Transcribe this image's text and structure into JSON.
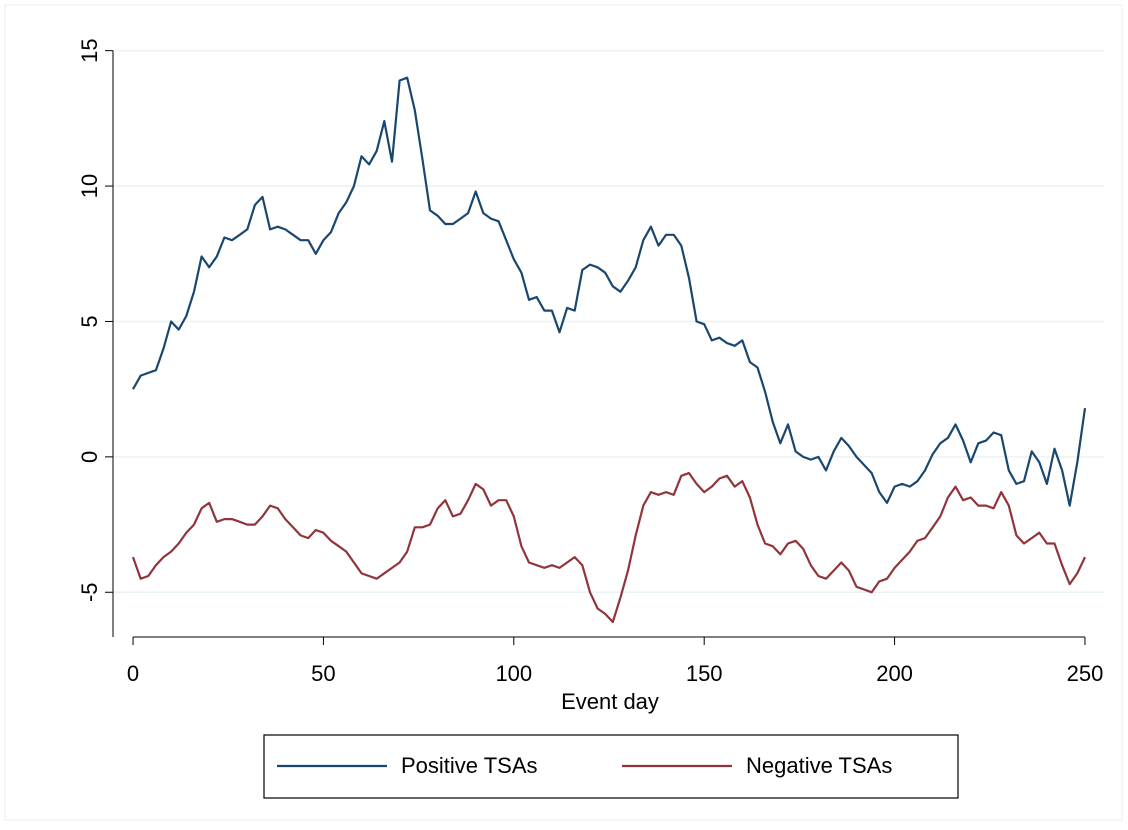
{
  "chart_data": {
    "type": "line",
    "xlabel": "Event day",
    "x": [
      0,
      2,
      4,
      6,
      8,
      10,
      12,
      14,
      16,
      18,
      20,
      22,
      24,
      26,
      28,
      30,
      32,
      34,
      36,
      38,
      40,
      42,
      44,
      46,
      48,
      50,
      52,
      54,
      56,
      58,
      60,
      62,
      64,
      66,
      68,
      70,
      72,
      74,
      76,
      78,
      80,
      82,
      84,
      86,
      88,
      90,
      92,
      94,
      96,
      98,
      100,
      102,
      104,
      106,
      108,
      110,
      112,
      114,
      116,
      118,
      120,
      122,
      124,
      126,
      128,
      130,
      132,
      134,
      136,
      138,
      140,
      142,
      144,
      146,
      148,
      150,
      152,
      154,
      156,
      158,
      160,
      162,
      164,
      166,
      168,
      170,
      172,
      174,
      176,
      178,
      180,
      182,
      184,
      186,
      188,
      190,
      192,
      194,
      196,
      198,
      200,
      202,
      204,
      206,
      208,
      210,
      212,
      214,
      216,
      218,
      220,
      222,
      224,
      226,
      228,
      230,
      232,
      234,
      236,
      238,
      240,
      242,
      244,
      246,
      248,
      250
    ],
    "series": [
      {
        "name": "Positive TSAs",
        "color": "#1a476f",
        "values": [
          2.5,
          3.0,
          3.1,
          3.2,
          4.0,
          5.0,
          4.7,
          5.2,
          6.1,
          7.4,
          7.0,
          7.4,
          8.1,
          8.0,
          8.2,
          8.4,
          9.3,
          9.6,
          8.4,
          8.5,
          8.4,
          8.2,
          8.0,
          8.0,
          7.5,
          8.0,
          8.3,
          9.0,
          9.4,
          10.0,
          11.1,
          10.8,
          11.3,
          12.4,
          10.9,
          13.9,
          14.0,
          12.8,
          11.0,
          9.1,
          8.9,
          8.6,
          8.6,
          8.8,
          9.0,
          9.8,
          9.0,
          8.8,
          8.7,
          8.0,
          7.3,
          6.8,
          5.8,
          5.9,
          5.4,
          5.4,
          4.6,
          5.5,
          5.4,
          6.9,
          7.1,
          7.0,
          6.8,
          6.3,
          6.1,
          6.5,
          7.0,
          8.0,
          8.5,
          7.8,
          8.2,
          8.2,
          7.8,
          6.6,
          5.0,
          4.9,
          4.3,
          4.4,
          4.2,
          4.1,
          4.3,
          3.5,
          3.3,
          2.4,
          1.3,
          0.5,
          1.2,
          0.2,
          0.0,
          -0.1,
          0.0,
          -0.5,
          0.2,
          0.7,
          0.4,
          0.0,
          -0.3,
          -0.6,
          -1.3,
          -1.7,
          -1.1,
          -1.0,
          -1.1,
          -0.9,
          -0.5,
          0.1,
          0.5,
          0.7,
          1.2,
          0.6,
          -0.2,
          0.5,
          0.6,
          0.9,
          0.8,
          -0.5,
          -1.0,
          -0.9,
          0.2,
          -0.2,
          -1.0,
          0.3,
          -0.5,
          -1.8,
          -0.2,
          1.8
        ]
      },
      {
        "name": "Negative TSAs",
        "color": "#90353b",
        "values": [
          -3.7,
          -4.5,
          -4.4,
          -4.0,
          -3.7,
          -3.5,
          -3.2,
          -2.8,
          -2.5,
          -1.9,
          -1.7,
          -2.4,
          -2.3,
          -2.3,
          -2.4,
          -2.5,
          -2.5,
          -2.2,
          -1.8,
          -1.9,
          -2.3,
          -2.6,
          -2.9,
          -3.0,
          -2.7,
          -2.8,
          -3.1,
          -3.3,
          -3.5,
          -3.9,
          -4.3,
          -4.4,
          -4.5,
          -4.3,
          -4.1,
          -3.9,
          -3.5,
          -2.6,
          -2.6,
          -2.5,
          -1.9,
          -1.6,
          -2.2,
          -2.1,
          -1.6,
          -1.0,
          -1.2,
          -1.8,
          -1.6,
          -1.6,
          -2.2,
          -3.3,
          -3.9,
          -4.0,
          -4.1,
          -4.0,
          -4.1,
          -3.9,
          -3.7,
          -4.0,
          -5.0,
          -5.6,
          -5.8,
          -6.1,
          -5.2,
          -4.2,
          -2.9,
          -1.8,
          -1.3,
          -1.4,
          -1.3,
          -1.4,
          -0.7,
          -0.6,
          -1.0,
          -1.3,
          -1.1,
          -0.8,
          -0.7,
          -1.1,
          -0.9,
          -1.5,
          -2.5,
          -3.2,
          -3.3,
          -3.6,
          -3.2,
          -3.1,
          -3.4,
          -4.0,
          -4.4,
          -4.5,
          -4.2,
          -3.9,
          -4.2,
          -4.8,
          -4.9,
          -5.0,
          -4.6,
          -4.5,
          -4.1,
          -3.8,
          -3.5,
          -3.1,
          -3.0,
          -2.6,
          -2.2,
          -1.5,
          -1.1,
          -1.6,
          -1.5,
          -1.8,
          -1.8,
          -1.9,
          -1.3,
          -1.8,
          -2.9,
          -3.2,
          -3.0,
          -2.8,
          -3.2,
          -3.2,
          -4.0,
          -4.7,
          -4.3,
          -3.7
        ]
      }
    ],
    "xlim": [
      -5,
      255
    ],
    "xticks": [
      0,
      50,
      100,
      150,
      200,
      250
    ],
    "ylim": [
      -6.8,
      15.8
    ],
    "yticks": [
      -5,
      0,
      5,
      10,
      15
    ],
    "grid": true,
    "legend": "bottom"
  }
}
